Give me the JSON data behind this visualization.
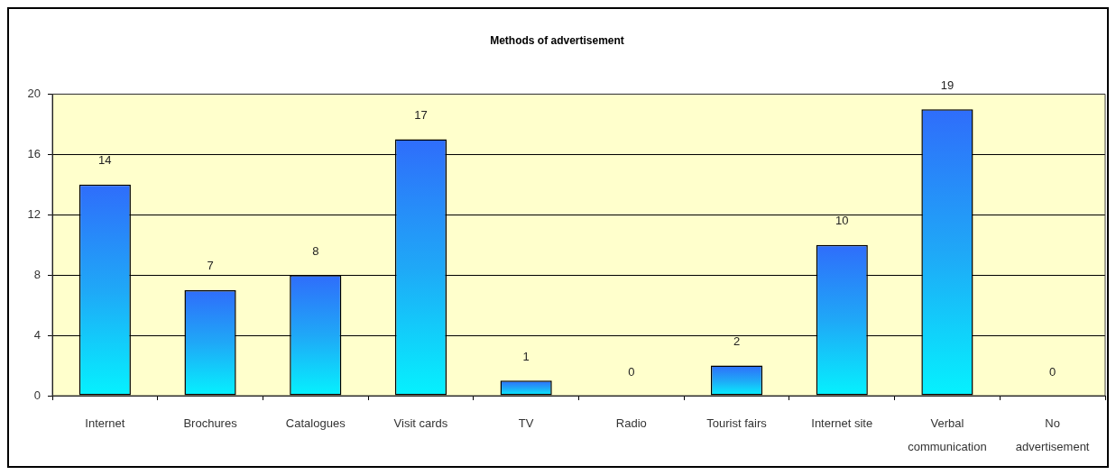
{
  "chart_data": {
    "type": "bar",
    "title": "Methods of advertisement",
    "categories": [
      "Internet",
      "Brochures",
      "Catalogues",
      "Visit cards",
      "TV",
      "Radio",
      "Tourist fairs",
      "Internet site",
      "Verbal communication",
      "No advertisement"
    ],
    "values": [
      14,
      7,
      8,
      17,
      1,
      0,
      2,
      10,
      19,
      0
    ],
    "color": "#1fa8f7",
    "ylim": [
      0,
      20
    ],
    "yticks": [
      0,
      4,
      8,
      12,
      16,
      20
    ],
    "grid": "y",
    "data_labels": true
  }
}
